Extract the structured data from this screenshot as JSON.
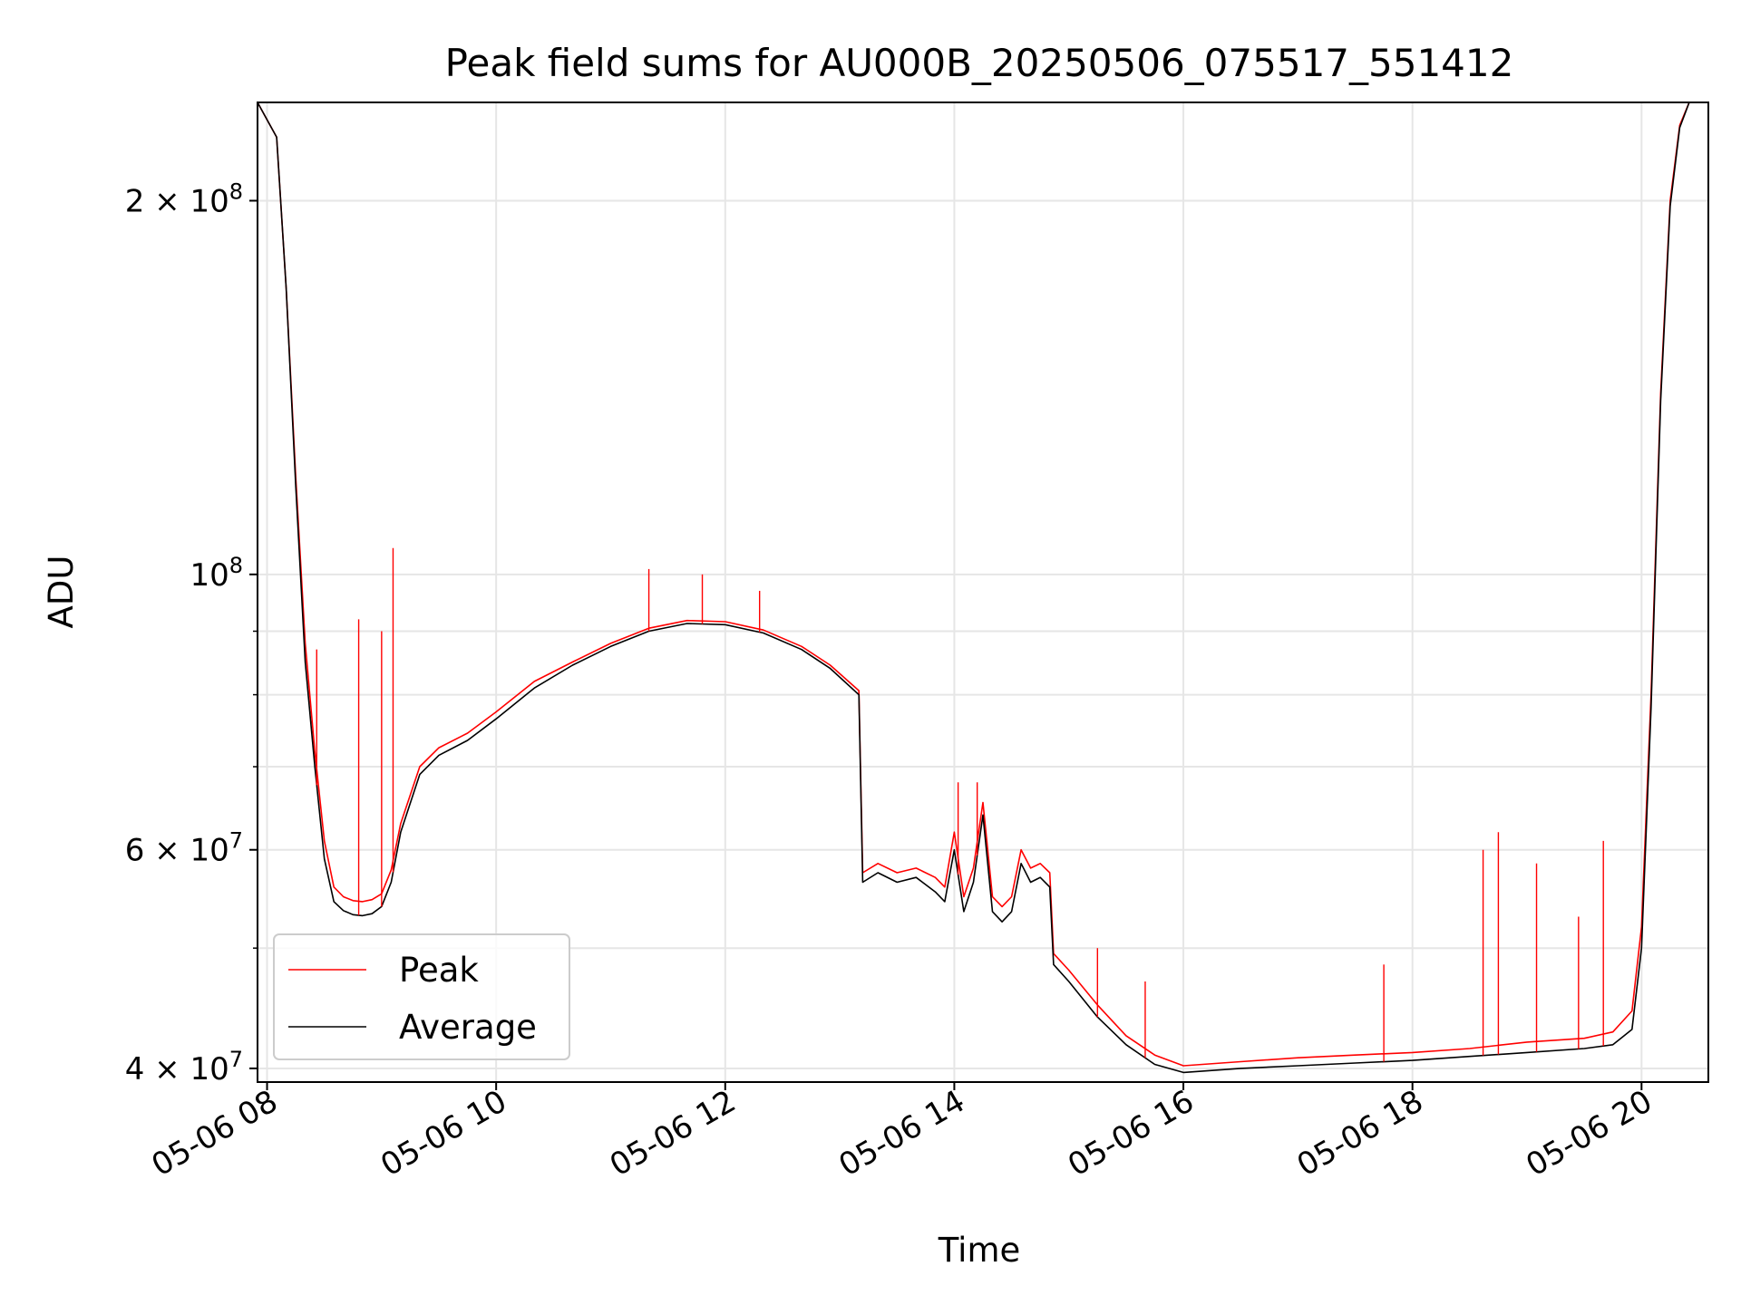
{
  "chart_data": {
    "type": "line",
    "title": "Peak field sums for AU000B_20250506_075517_551412",
    "xlabel": "Time",
    "ylabel": "ADU",
    "yscale": "log",
    "xlim": [
      "2025-05-06T07:55:00",
      "2025-05-06T20:35:00"
    ],
    "ylim": [
      39000000.0,
      240000000.0
    ],
    "x_ticks": [
      {
        "t": "2025-05-06T08:00:00",
        "label": "05-06 08"
      },
      {
        "t": "2025-05-06T10:00:00",
        "label": "05-06 10"
      },
      {
        "t": "2025-05-06T12:00:00",
        "label": "05-06 12"
      },
      {
        "t": "2025-05-06T14:00:00",
        "label": "05-06 14"
      },
      {
        "t": "2025-05-06T16:00:00",
        "label": "05-06 16"
      },
      {
        "t": "2025-05-06T18:00:00",
        "label": "05-06 18"
      },
      {
        "t": "2025-05-06T20:00:00",
        "label": "05-06 20"
      }
    ],
    "y_major_ticks": [
      {
        "v": 40000000.0,
        "base": "4 × 10",
        "exp": "7"
      },
      {
        "v": 60000000.0,
        "base": "6 × 10",
        "exp": "7"
      },
      {
        "v": 100000000.0,
        "base": "10",
        "exp": "8"
      },
      {
        "v": 200000000.0,
        "base": "2 × 10",
        "exp": "8"
      }
    ],
    "y_minor_ticks": [
      50000000.0,
      70000000.0,
      80000000.0,
      90000000.0
    ],
    "grid": true,
    "legend_position": "lower-left",
    "series": [
      {
        "name": "Peak",
        "color": "#ff0000",
        "x": [
          "2025-05-06T07:55:00",
          "2025-05-06T08:05:00",
          "2025-05-06T08:10:00",
          "2025-05-06T08:15:00",
          "2025-05-06T08:20:00",
          "2025-05-06T08:25:00",
          "2025-05-06T08:30:00",
          "2025-05-06T08:35:00",
          "2025-05-06T08:40:00",
          "2025-05-06T08:45:00",
          "2025-05-06T08:50:00",
          "2025-05-06T08:55:00",
          "2025-05-06T09:00:00",
          "2025-05-06T09:05:00",
          "2025-05-06T09:10:00",
          "2025-05-06T09:20:00",
          "2025-05-06T09:30:00",
          "2025-05-06T09:45:00",
          "2025-05-06T10:00:00",
          "2025-05-06T10:20:00",
          "2025-05-06T10:40:00",
          "2025-05-06T11:00:00",
          "2025-05-06T11:20:00",
          "2025-05-06T11:40:00",
          "2025-05-06T12:00:00",
          "2025-05-06T12:20:00",
          "2025-05-06T12:40:00",
          "2025-05-06T12:55:00",
          "2025-05-06T13:10:00",
          "2025-05-06T13:12:00",
          "2025-05-06T13:20:00",
          "2025-05-06T13:30:00",
          "2025-05-06T13:40:00",
          "2025-05-06T13:50:00",
          "2025-05-06T13:55:00",
          "2025-05-06T14:00:00",
          "2025-05-06T14:05:00",
          "2025-05-06T14:10:00",
          "2025-05-06T14:15:00",
          "2025-05-06T14:20:00",
          "2025-05-06T14:25:00",
          "2025-05-06T14:30:00",
          "2025-05-06T14:35:00",
          "2025-05-06T14:40:00",
          "2025-05-06T14:45:00",
          "2025-05-06T14:50:00",
          "2025-05-06T14:52:00",
          "2025-05-06T15:00:00",
          "2025-05-06T15:15:00",
          "2025-05-06T15:30:00",
          "2025-05-06T15:45:00",
          "2025-05-06T16:00:00",
          "2025-05-06T16:30:00",
          "2025-05-06T17:00:00",
          "2025-05-06T17:30:00",
          "2025-05-06T18:00:00",
          "2025-05-06T18:30:00",
          "2025-05-06T19:00:00",
          "2025-05-06T19:30:00",
          "2025-05-06T19:45:00",
          "2025-05-06T19:55:00",
          "2025-05-06T20:00:00",
          "2025-05-06T20:05:00",
          "2025-05-06T20:10:00",
          "2025-05-06T20:15:00",
          "2025-05-06T20:20:00",
          "2025-05-06T20:25:00",
          "2025-05-06T20:35:00"
        ],
        "y": [
          240000000.0,
          225000000.0,
          170000000.0,
          120000000.0,
          88000000.0,
          72000000.0,
          61000000.0,
          56000000.0,
          55000000.0,
          54600000.0,
          54500000.0,
          54700000.0,
          55300000.0,
          57800000.0,
          63000000.0,
          70000000.0,
          72500000.0,
          74500000.0,
          77500000.0,
          82000000.0,
          85000000.0,
          88000000.0,
          90500000.0,
          91800000.0,
          91600000.0,
          90200000.0,
          87500000.0,
          84500000.0,
          80600000.0,
          57500000.0,
          58500000.0,
          57500000.0,
          58000000.0,
          57000000.0,
          56000000.0,
          62000000.0,
          55000000.0,
          58000000.0,
          65500000.0,
          55000000.0,
          54000000.0,
          55000000.0,
          60000000.0,
          58000000.0,
          58500000.0,
          57500000.0,
          49500000.0,
          48000000.0,
          45000000.0,
          42500000.0,
          41000000.0,
          40200000.0,
          40500000.0,
          40800000.0,
          41000000.0,
          41200000.0,
          41500000.0,
          42000000.0,
          42300000.0,
          42800000.0,
          44500000.0,
          52000000.0,
          80000000.0,
          140000000.0,
          200000000.0,
          230000000.0,
          240000000.0,
          240000000.0
        ]
      },
      {
        "name": "Average",
        "color": "#000000",
        "x": [
          "2025-05-06T07:55:00",
          "2025-05-06T08:05:00",
          "2025-05-06T08:10:00",
          "2025-05-06T08:15:00",
          "2025-05-06T08:20:00",
          "2025-05-06T08:25:00",
          "2025-05-06T08:30:00",
          "2025-05-06T08:35:00",
          "2025-05-06T08:40:00",
          "2025-05-06T08:45:00",
          "2025-05-06T08:50:00",
          "2025-05-06T08:55:00",
          "2025-05-06T09:00:00",
          "2025-05-06T09:05:00",
          "2025-05-06T09:10:00",
          "2025-05-06T09:20:00",
          "2025-05-06T09:30:00",
          "2025-05-06T09:45:00",
          "2025-05-06T10:00:00",
          "2025-05-06T10:20:00",
          "2025-05-06T10:40:00",
          "2025-05-06T11:00:00",
          "2025-05-06T11:20:00",
          "2025-05-06T11:40:00",
          "2025-05-06T12:00:00",
          "2025-05-06T12:20:00",
          "2025-05-06T12:40:00",
          "2025-05-06T12:55:00",
          "2025-05-06T13:10:00",
          "2025-05-06T13:12:00",
          "2025-05-06T13:20:00",
          "2025-05-06T13:30:00",
          "2025-05-06T13:40:00",
          "2025-05-06T13:50:00",
          "2025-05-06T13:55:00",
          "2025-05-06T14:00:00",
          "2025-05-06T14:05:00",
          "2025-05-06T14:10:00",
          "2025-05-06T14:15:00",
          "2025-05-06T14:20:00",
          "2025-05-06T14:25:00",
          "2025-05-06T14:30:00",
          "2025-05-06T14:35:00",
          "2025-05-06T14:40:00",
          "2025-05-06T14:45:00",
          "2025-05-06T14:50:00",
          "2025-05-06T14:52:00",
          "2025-05-06T15:00:00",
          "2025-05-06T15:15:00",
          "2025-05-06T15:30:00",
          "2025-05-06T15:45:00",
          "2025-05-06T16:00:00",
          "2025-05-06T16:30:00",
          "2025-05-06T17:00:00",
          "2025-05-06T17:30:00",
          "2025-05-06T18:00:00",
          "2025-05-06T18:30:00",
          "2025-05-06T19:00:00",
          "2025-05-06T19:30:00",
          "2025-05-06T19:45:00",
          "2025-05-06T19:55:00",
          "2025-05-06T20:00:00",
          "2025-05-06T20:05:00",
          "2025-05-06T20:10:00",
          "2025-05-06T20:15:00",
          "2025-05-06T20:20:00",
          "2025-05-06T20:25:00",
          "2025-05-06T20:35:00"
        ],
        "y": [
          240000000.0,
          225000000.0,
          170000000.0,
          118000000.0,
          85000000.0,
          70000000.0,
          59000000.0,
          54500000.0,
          53600000.0,
          53200000.0,
          53100000.0,
          53300000.0,
          54000000.0,
          56500000.0,
          62000000.0,
          69000000.0,
          71500000.0,
          73500000.0,
          76500000.0,
          81000000.0,
          84500000.0,
          87500000.0,
          90000000.0,
          91300000.0,
          91100000.0,
          89700000.0,
          87000000.0,
          84000000.0,
          80000000.0,
          56500000.0,
          57500000.0,
          56500000.0,
          57000000.0,
          55500000.0,
          54500000.0,
          60000000.0,
          53500000.0,
          56500000.0,
          64000000.0,
          53500000.0,
          52500000.0,
          53500000.0,
          58500000.0,
          56500000.0,
          57000000.0,
          56000000.0,
          48500000.0,
          47000000.0,
          44000000.0,
          41800000.0,
          40300000.0,
          39700000.0,
          40000000.0,
          40200000.0,
          40400000.0,
          40600000.0,
          40900000.0,
          41200000.0,
          41500000.0,
          41800000.0,
          43000000.0,
          50000000.0,
          78000000.0,
          138000000.0,
          198000000.0,
          229000000.0,
          240000000.0,
          240000000.0
        ]
      }
    ],
    "peak_spikes": [
      {
        "t": "2025-05-06T08:26:00",
        "y": 87000000.0
      },
      {
        "t": "2025-05-06T08:48:00",
        "y": 92000000.0
      },
      {
        "t": "2025-05-06T09:00:00",
        "y": 90000000.0
      },
      {
        "t": "2025-05-06T09:06:00",
        "y": 105000000.0
      },
      {
        "t": "2025-05-06T11:20:00",
        "y": 101000000.0
      },
      {
        "t": "2025-05-06T11:48:00",
        "y": 100000000.0
      },
      {
        "t": "2025-05-06T12:18:00",
        "y": 97000000.0
      },
      {
        "t": "2025-05-06T14:02:00",
        "y": 68000000.0
      },
      {
        "t": "2025-05-06T14:12:00",
        "y": 68000000.0
      },
      {
        "t": "2025-05-06T15:15:00",
        "y": 50000000.0
      },
      {
        "t": "2025-05-06T15:40:00",
        "y": 47000000.0
      },
      {
        "t": "2025-05-06T17:45:00",
        "y": 48500000.0
      },
      {
        "t": "2025-05-06T18:37:00",
        "y": 60000000.0
      },
      {
        "t": "2025-05-06T18:45:00",
        "y": 62000000.0
      },
      {
        "t": "2025-05-06T19:05:00",
        "y": 58500000.0
      },
      {
        "t": "2025-05-06T19:27:00",
        "y": 53000000.0
      },
      {
        "t": "2025-05-06T19:40:00",
        "y": 61000000.0
      }
    ]
  }
}
